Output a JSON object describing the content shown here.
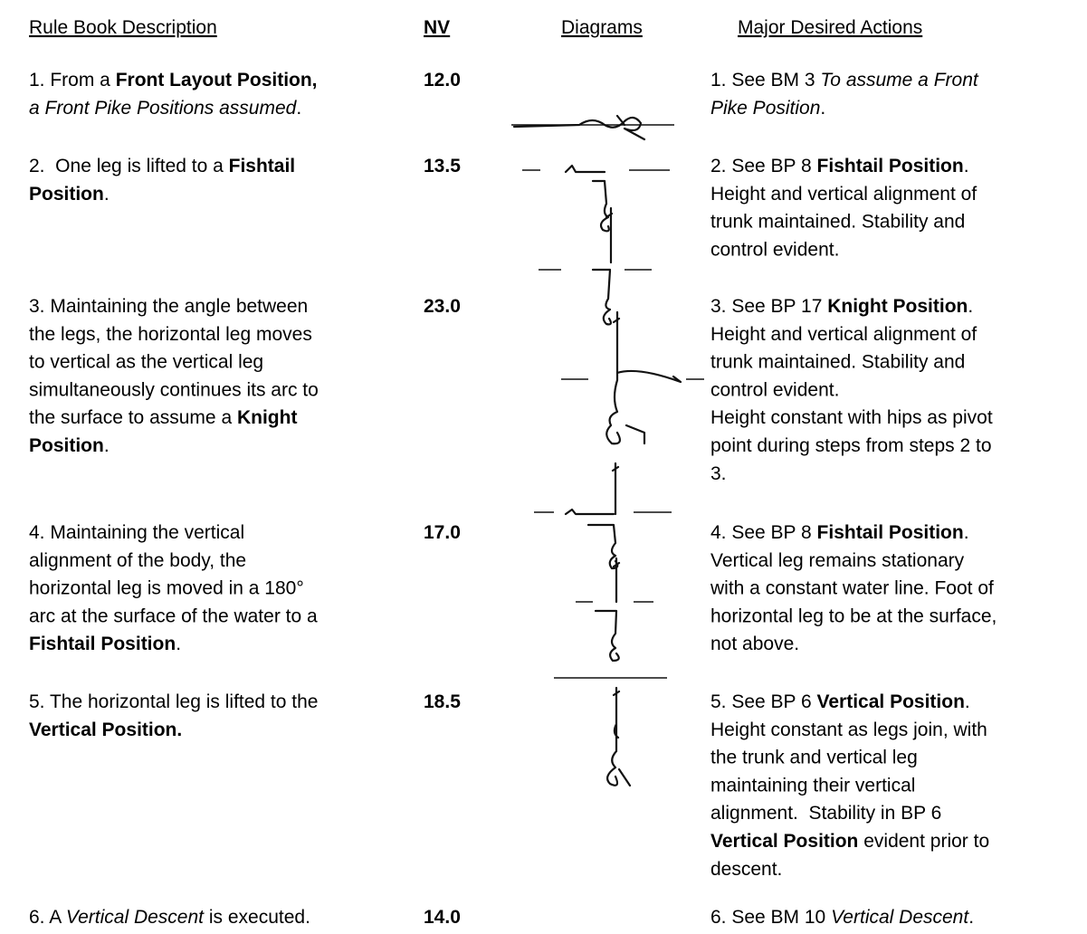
{
  "header": [
    "Rule Book Description",
    "NV",
    "Diagrams",
    "Major Desired Actions"
  ],
  "rows": [
    {
      "description": [
        [
          "1. From a ",
          {
            "text": "Front Layout Position,",
            "style": "bold"
          }
        ],
        [
          {
            "text": "a Front Pike Positions assumed",
            "style": "italic"
          },
          "."
        ]
      ],
      "nv": "12.0",
      "actions": [
        [
          "1. See BM 3 ",
          {
            "text": "To assume a Front",
            "style": "italic"
          }
        ],
        [
          {
            "text": "Pike Position",
            "style": "italic"
          },
          "."
        ]
      ]
    },
    {
      "description": [
        [
          "2.  One leg is lifted to a ",
          {
            "text": "Fishtail",
            "style": "bold"
          }
        ],
        [
          {
            "text": "Position",
            "style": "bold"
          },
          "."
        ]
      ],
      "nv": "13.5",
      "actions": [
        [
          "2. See BP 8 ",
          {
            "text": "Fishtail Position",
            "style": "bold"
          },
          "."
        ],
        [
          "Height and vertical alignment of"
        ],
        [
          "trunk maintained. Stability and"
        ],
        [
          "control evident."
        ]
      ]
    },
    {
      "description": [
        [
          "3. Maintaining the angle between"
        ],
        [
          "the legs, the horizontal leg moves"
        ],
        [
          "to vertical as the vertical leg"
        ],
        [
          "simultaneously continues its arc to"
        ],
        [
          "the surface to assume a ",
          {
            "text": "Knight",
            "style": "bold"
          }
        ],
        [
          {
            "text": "Position",
            "style": "bold"
          },
          "."
        ]
      ],
      "nv": "23.0",
      "actions": [
        [
          "3. See BP 17 ",
          {
            "text": "Knight Position",
            "style": "bold"
          },
          "."
        ],
        [
          "Height and vertical alignment of"
        ],
        [
          "trunk maintained. Stability and"
        ],
        [
          "control evident."
        ],
        [
          "Height constant with hips as pivot"
        ],
        [
          "point during steps from steps 2 to"
        ],
        [
          "3."
        ]
      ]
    },
    {
      "description": [
        [
          "4. Maintaining the vertical"
        ],
        [
          "alignment of the body, the"
        ],
        [
          "horizontal leg is moved in a 180°"
        ],
        [
          "arc at the surface of the water to a"
        ],
        [
          {
            "text": "Fishtail Position",
            "style": "bold"
          },
          "."
        ]
      ],
      "nv": "17.0",
      "actions": [
        [
          "4. See BP 8 ",
          {
            "text": "Fishtail Position",
            "style": "bold"
          },
          "."
        ],
        [
          "Vertical leg remains stationary"
        ],
        [
          "with a constant water line. Foot of"
        ],
        [
          "horizontal leg to be at the surface,"
        ],
        [
          "not above."
        ]
      ]
    },
    {
      "description": [
        [
          "5. The horizontal leg is lifted to the"
        ],
        [
          {
            "text": "Vertical Position.",
            "style": "bold"
          }
        ]
      ],
      "nv": "18.5",
      "actions": [
        [
          "5. See BP 6 ",
          {
            "text": "Vertical Position",
            "style": "bold"
          },
          "."
        ],
        [
          "Height constant as legs join, with"
        ],
        [
          "the trunk and vertical leg"
        ],
        [
          "maintaining their vertical"
        ],
        [
          "alignment.  Stability in BP 6"
        ],
        [
          {
            "text": "Vertical Position",
            "style": "bold"
          },
          " evident prior to"
        ],
        [
          "descent."
        ]
      ]
    },
    {
      "description": [
        [
          "6. A ",
          {
            "text": "Vertical Descent",
            "style": "italic"
          },
          " is executed."
        ]
      ],
      "nv": "14.0",
      "actions": [
        [
          "6. See BM 10 ",
          {
            "text": "Vertical Descent",
            "style": "italic"
          },
          "."
        ]
      ]
    }
  ]
}
